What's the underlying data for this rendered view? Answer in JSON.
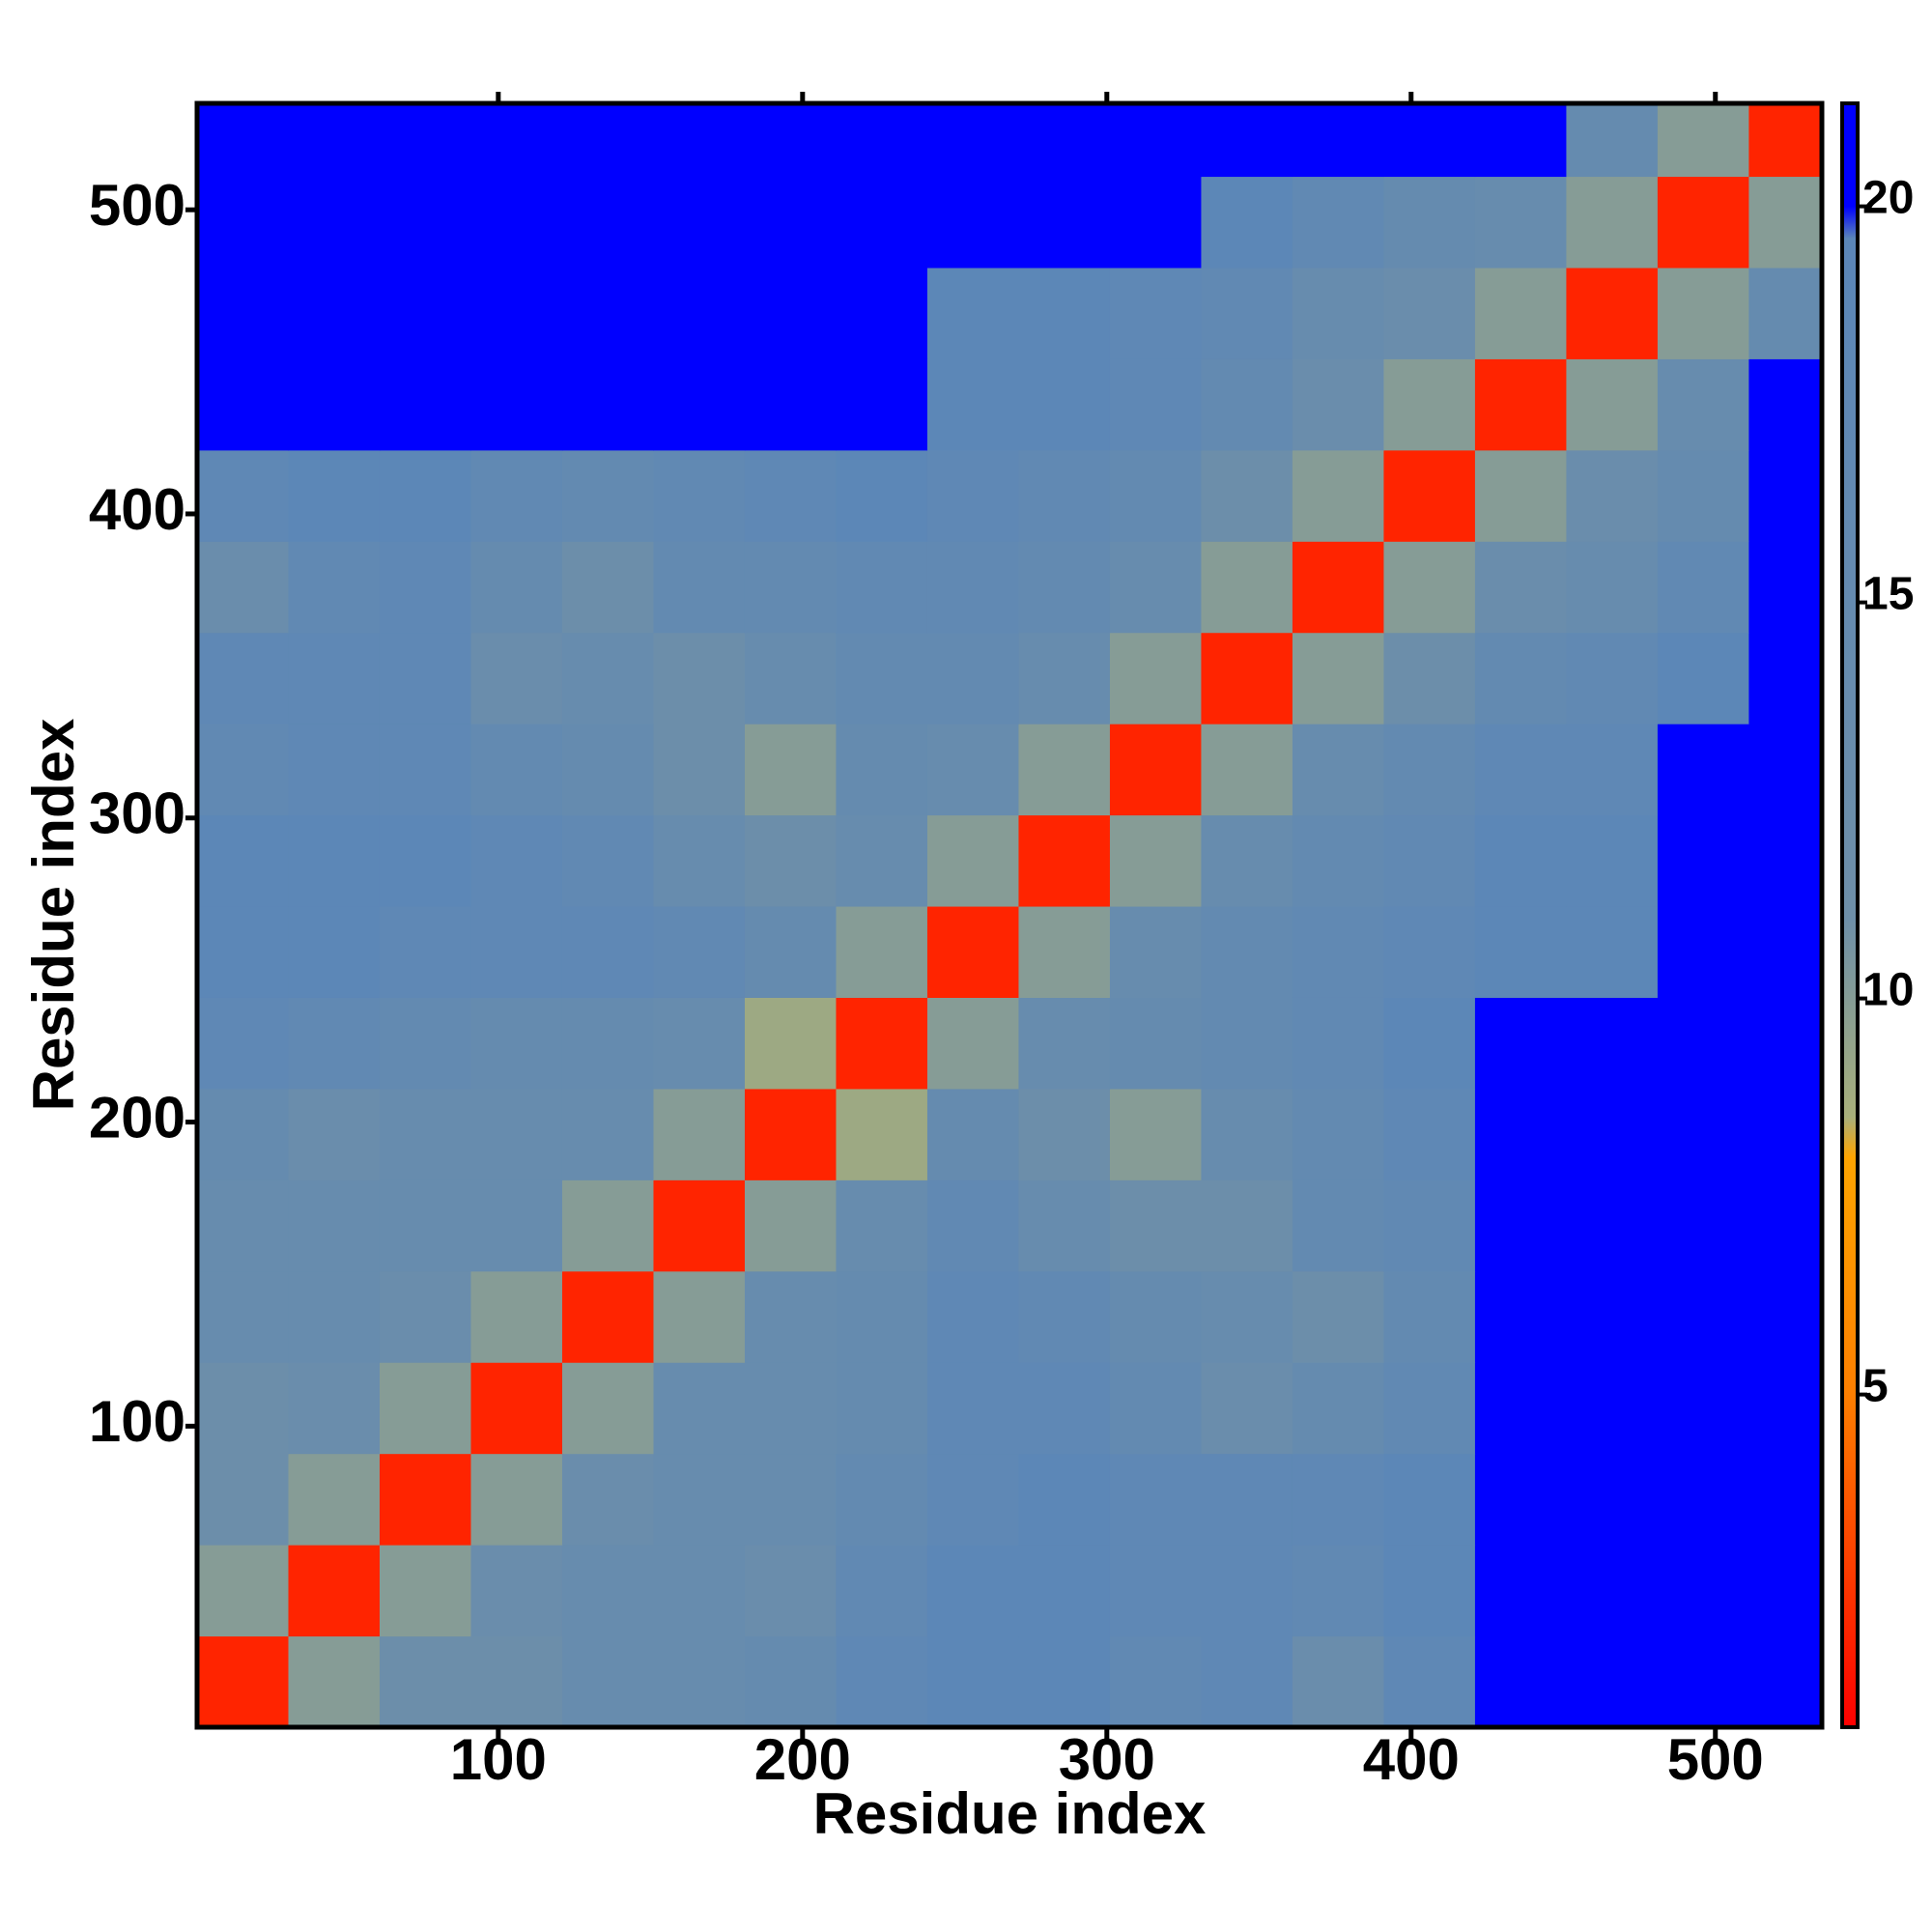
{
  "chart_data": {
    "type": "heatmap",
    "xlabel": "Residue index",
    "ylabel": "Residue index",
    "xlim": [
      1,
      535
    ],
    "ylim": [
      1,
      535
    ],
    "xticks": [
      100,
      200,
      300,
      400,
      500
    ],
    "yticks": [
      100,
      200,
      300,
      400,
      500
    ],
    "x_bins": [
      1,
      31,
      61,
      91,
      121,
      151,
      181,
      211,
      241,
      271,
      301,
      331,
      361,
      391,
      421,
      451,
      481,
      511,
      535
    ],
    "y_bins": [
      1,
      31,
      61,
      91,
      121,
      151,
      181,
      211,
      241,
      271,
      301,
      331,
      361,
      391,
      421,
      451,
      481,
      511,
      535
    ],
    "z": [
      [
        2,
        10,
        12,
        12,
        14,
        14,
        15,
        18,
        19,
        19,
        17,
        18,
        13,
        18,
        21,
        21,
        21,
        21
      ],
      [
        10,
        2,
        10,
        13,
        14,
        14,
        13,
        17,
        19,
        19,
        18,
        18,
        17,
        19,
        21,
        21,
        21,
        21
      ],
      [
        12,
        10,
        2,
        10,
        13,
        14,
        14,
        16,
        18,
        19,
        18,
        18,
        18,
        19,
        21,
        21,
        21,
        21
      ],
      [
        12,
        13,
        10,
        2,
        10,
        14,
        14,
        15,
        18,
        18,
        16,
        13,
        15,
        17,
        21,
        21,
        21,
        21
      ],
      [
        14,
        14,
        13,
        10,
        2,
        10,
        14,
        15,
        18,
        17,
        15,
        14,
        12,
        16,
        21,
        21,
        21,
        21
      ],
      [
        14,
        14,
        14,
        14,
        10,
        2,
        10,
        14,
        17,
        14,
        12,
        12,
        16,
        17,
        21,
        21,
        21,
        21
      ],
      [
        15,
        13,
        14,
        14,
        14,
        10,
        2,
        9,
        15,
        12,
        10,
        14,
        16,
        18,
        21,
        21,
        21,
        21
      ],
      [
        18,
        17,
        16,
        15,
        15,
        14,
        9,
        2,
        10,
        14,
        15,
        16,
        17,
        19,
        20,
        20,
        21,
        21
      ],
      [
        19,
        19,
        18,
        18,
        18,
        17,
        15,
        10,
        2,
        10,
        14,
        16,
        17,
        18,
        19,
        19,
        20,
        21
      ],
      [
        19,
        19,
        19,
        18,
        17,
        14,
        12,
        14,
        10,
        2,
        10,
        14,
        16,
        17,
        19,
        19,
        20,
        21
      ],
      [
        17,
        18,
        18,
        16,
        15,
        12,
        10,
        15,
        14,
        10,
        2,
        10,
        14,
        16,
        18,
        18,
        20,
        21
      ],
      [
        18,
        18,
        18,
        13,
        14,
        12,
        14,
        16,
        16,
        14,
        10,
        2,
        10,
        12,
        16,
        17,
        19,
        21
      ],
      [
        13,
        17,
        18,
        15,
        12,
        16,
        16,
        17,
        17,
        16,
        14,
        10,
        2,
        10,
        13,
        14,
        17,
        21
      ],
      [
        18,
        19,
        19,
        17,
        16,
        17,
        18,
        19,
        18,
        17,
        16,
        12,
        10,
        2,
        10,
        13,
        15,
        21
      ],
      [
        21,
        21,
        21,
        21,
        21,
        21,
        21,
        20,
        19,
        19,
        18,
        16,
        13,
        10,
        2,
        10,
        14,
        21
      ],
      [
        21,
        21,
        21,
        21,
        21,
        21,
        21,
        20,
        19,
        19,
        18,
        17,
        14,
        13,
        10,
        2,
        10,
        15
      ],
      [
        21,
        21,
        21,
        21,
        21,
        21,
        21,
        21,
        20,
        20,
        20,
        19,
        17,
        15,
        14,
        10,
        2,
        10
      ],
      [
        21,
        21,
        21,
        21,
        21,
        21,
        21,
        21,
        21,
        21,
        21,
        21,
        21,
        21,
        21,
        15,
        10,
        2
      ]
    ],
    "colorbar": {
      "lim": [
        0.8,
        21.3
      ],
      "ticks": [
        5,
        10,
        15,
        20
      ],
      "stops": [
        {
          "value": 0.8,
          "color": "#ff0000"
        },
        {
          "value": 5,
          "color": "#ff7f00"
        },
        {
          "value": 8,
          "color": "#ffa500"
        },
        {
          "value": 8.5,
          "color": "#a9b07a"
        },
        {
          "value": 11,
          "color": "#6e8fa8"
        },
        {
          "value": 19.6,
          "color": "#5b86b8"
        },
        {
          "value": 20,
          "color": "#0000ff"
        },
        {
          "value": 21.3,
          "color": "#0000ff"
        }
      ]
    }
  }
}
